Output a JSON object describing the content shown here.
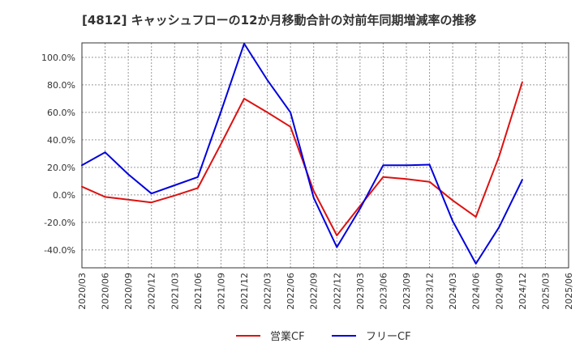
{
  "title": "[4812]  キャッシュフローの12か月移動合計の対前年同期増減率の推移",
  "colors": {
    "operating_cf": "#dd1111",
    "free_cf": "#0000dd",
    "grid": "#999999",
    "axis": "#333333"
  },
  "chart_data": {
    "type": "line",
    "title": "[4812]  キャッシュフローの12か月移動合計の対前年同期増減率の推移",
    "xlabel": "",
    "ylabel": "",
    "ylim": [
      -53.0,
      110.5
    ],
    "yticks": [
      100.0,
      80.0,
      60.0,
      40.0,
      20.0,
      0.0,
      -20.0,
      -40.0
    ],
    "ytick_labels": [
      "100.0%",
      "80.0%",
      "60.0%",
      "40.0%",
      "20.0%",
      "0.0%",
      "-20.0%",
      "-40.0%"
    ],
    "categories": [
      "2020/03",
      "2020/06",
      "2020/09",
      "2020/12",
      "2021/03",
      "2021/06",
      "2021/09",
      "2021/12",
      "2022/03",
      "2022/06",
      "2022/09",
      "2022/12",
      "2023/03",
      "2023/06",
      "2023/09",
      "2023/12",
      "2024/03",
      "2024/06",
      "2024/09",
      "2024/12",
      "2025/03",
      "2025/06"
    ],
    "grid": true,
    "legend_position": "bottom",
    "series": [
      {
        "name": "営業CF",
        "color": "#dd1111",
        "values": [
          6.0,
          -1.5,
          -3.5,
          -5.5,
          -0.5,
          5.0,
          37.0,
          70.0,
          60.0,
          49.5,
          3.0,
          -29.5,
          -8.0,
          13.0,
          11.5,
          9.5,
          -4.0,
          -16.0,
          28.0,
          82.0,
          null,
          null
        ]
      },
      {
        "name": "フリーCF",
        "color": "#0000dd",
        "values": [
          21.5,
          31.0,
          15.0,
          1.0,
          7.0,
          13.0,
          60.5,
          110.0,
          83.5,
          60.0,
          -2.0,
          -38.0,
          -10.0,
          21.5,
          21.5,
          22.0,
          -19.0,
          -50.0,
          -23.5,
          11.0,
          null,
          null
        ]
      }
    ]
  }
}
